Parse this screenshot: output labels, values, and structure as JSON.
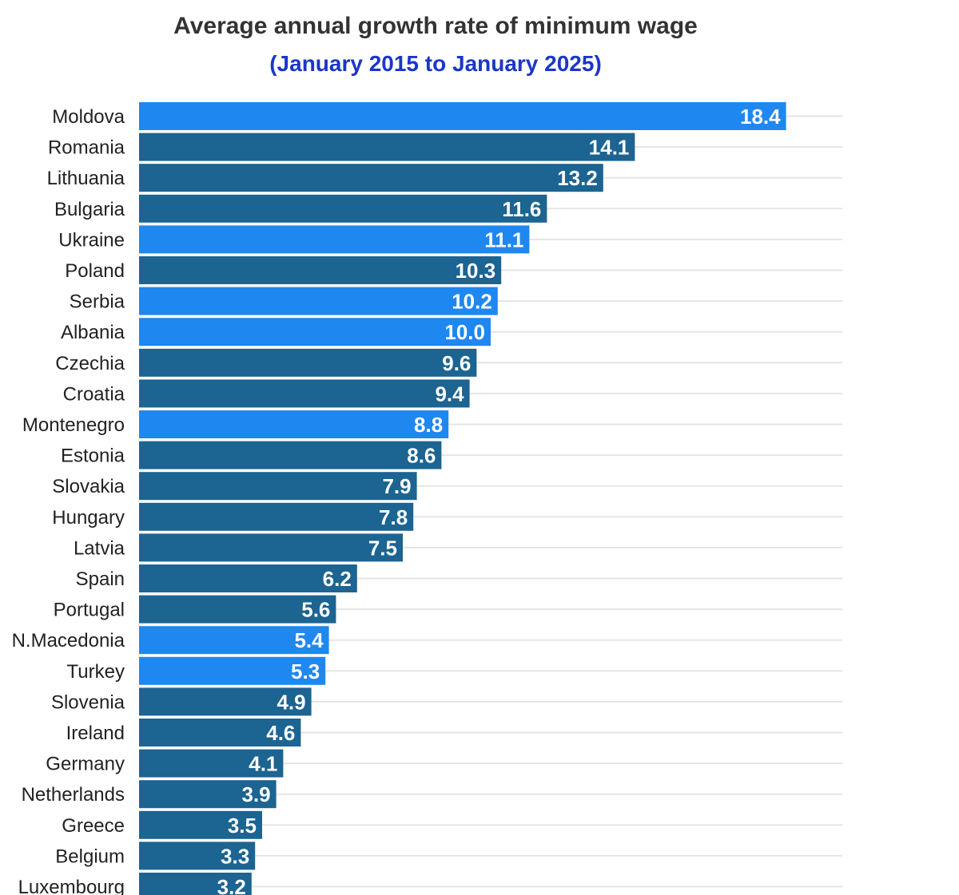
{
  "chart_data": {
    "type": "bar",
    "orientation": "horizontal",
    "title": "Average annual growth rate of minimum wage",
    "subtitle": "(January 2015 to January 2025)",
    "xlabel": "",
    "ylabel": "",
    "xlim": [
      0,
      20
    ],
    "grid": true,
    "legend": "none",
    "colors": {
      "highlight": "#1f87f0",
      "default": "#1c6491",
      "grid": "#e5e5e5",
      "title": "#333333",
      "subtitle": "#1b36c8"
    },
    "categories": [
      "Moldova",
      "Romania",
      "Lithuania",
      "Bulgaria",
      "Ukraine",
      "Poland",
      "Serbia",
      "Albania",
      "Czechia",
      "Croatia",
      "Montenegro",
      "Estonia",
      "Slovakia",
      "Hungary",
      "Latvia",
      "Spain",
      "Portugal",
      "N.Macedonia",
      "Turkey",
      "Slovenia",
      "Ireland",
      "Germany",
      "Netherlands",
      "Greece",
      "Belgium",
      "Luxembourg"
    ],
    "values": [
      18.4,
      14.1,
      13.2,
      11.6,
      11.1,
      10.3,
      10.2,
      10.0,
      9.6,
      9.4,
      8.8,
      8.6,
      7.9,
      7.8,
      7.5,
      6.2,
      5.6,
      5.4,
      5.3,
      4.9,
      4.6,
      4.1,
      3.9,
      3.5,
      3.3,
      3.2
    ],
    "value_labels": [
      "18.4",
      "14.1",
      "13.2",
      "11.6",
      "11.1",
      "10.3",
      "10.2",
      "10.0",
      "9.6",
      "9.4",
      "8.8",
      "8.6",
      "7.9",
      "7.8",
      "7.5",
      "6.2",
      "5.6",
      "5.4",
      "5.3",
      "4.9",
      "4.6",
      "4.1",
      "3.9",
      "3.5",
      "3.3",
      "3.2"
    ],
    "highlighted": [
      true,
      false,
      false,
      false,
      true,
      false,
      true,
      true,
      false,
      false,
      true,
      false,
      false,
      false,
      false,
      false,
      false,
      true,
      true,
      false,
      false,
      false,
      false,
      false,
      false,
      false
    ]
  }
}
